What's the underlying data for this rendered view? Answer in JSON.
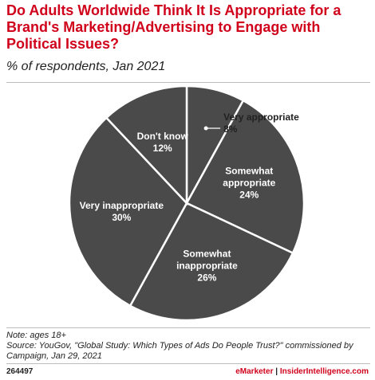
{
  "chart_data": {
    "type": "pie",
    "title": "Do Adults Worldwide Think It Is Appropriate for a Brand's Marketing/Advertising to Engage with Political Issues?",
    "subtitle": "% of respondents, Jan 2021",
    "slices": [
      {
        "label_lines": [
          "Very appropriate"
        ],
        "value": 8,
        "display": "8%"
      },
      {
        "label_lines": [
          "Somewhat",
          "appropriate"
        ],
        "value": 24,
        "display": "24%"
      },
      {
        "label_lines": [
          "Somewhat",
          "inappropriate"
        ],
        "value": 26,
        "display": "26%"
      },
      {
        "label_lines": [
          "Very inappropriate"
        ],
        "value": 30,
        "display": "30%"
      },
      {
        "label_lines": [
          "Don't know"
        ],
        "value": 12,
        "display": "12%"
      }
    ]
  },
  "colors": {
    "slice": "#4a4a4a",
    "border": "#ffffff",
    "label": "#ffffff",
    "outside_label": "#222222",
    "accent": "#d0021b"
  },
  "footer": {
    "note": "Note: ages 18+",
    "source": "Source: YouGov, \"Global Study: Which Types of Ads Do People Trust?\" commissioned by Campaign, Jan 29, 2021",
    "chart_id": "264497",
    "brand_emarketer": "eMarketer",
    "brand_sep": " | ",
    "brand_ii": "InsiderIntelligence.com"
  }
}
